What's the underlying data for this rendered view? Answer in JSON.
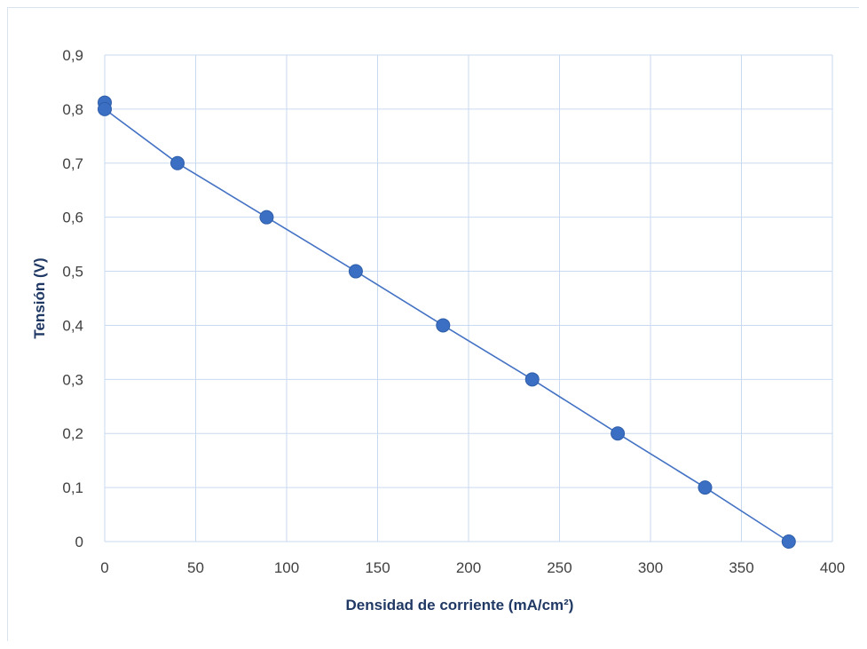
{
  "chart_data": {
    "type": "scatter",
    "title": "",
    "xlabel": "Densidad de corriente (mA/cm²)",
    "ylabel": "Tensión (V)",
    "xlim": [
      0,
      400
    ],
    "ylim": [
      0,
      0.9
    ],
    "x_ticks": [
      0,
      50,
      100,
      150,
      200,
      250,
      300,
      350,
      400
    ],
    "y_ticks": [
      0,
      0.1,
      0.2,
      0.3,
      0.4,
      0.5,
      0.6,
      0.7,
      0.8,
      0.9
    ],
    "x_tick_labels": [
      "0",
      "50",
      "100",
      "150",
      "200",
      "250",
      "300",
      "350",
      "400"
    ],
    "y_tick_labels": [
      "0",
      "0,1",
      "0,2",
      "0,3",
      "0,4",
      "0,5",
      "0,6",
      "0,7",
      "0,8",
      "0,9"
    ],
    "grid": true,
    "legend": "none",
    "series": [
      {
        "color": "#4472c4",
        "marker_color": "#3a6fc4",
        "line": true,
        "x": [
          0,
          0,
          40,
          89,
          138,
          186,
          235,
          282,
          330,
          376
        ],
        "y": [
          0.812,
          0.8,
          0.7,
          0.6,
          0.5,
          0.4,
          0.3,
          0.2,
          0.1,
          0
        ]
      }
    ]
  }
}
